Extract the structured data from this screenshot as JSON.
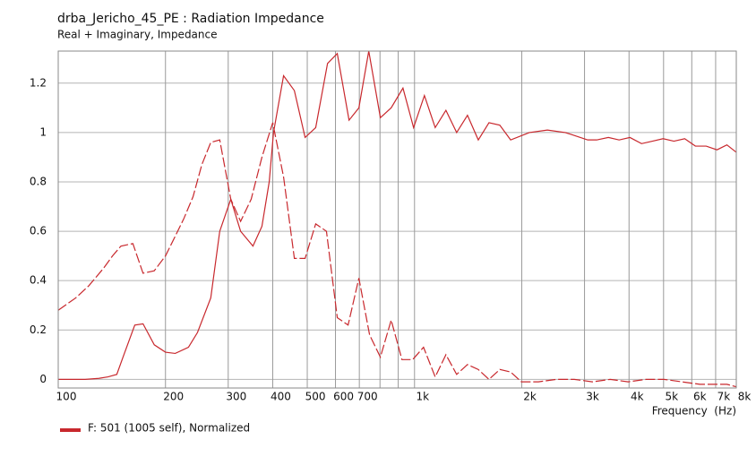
{
  "chart_data": {
    "type": "line",
    "title": "drba_Jericho_45_PE : Radiation Impedance",
    "subtitle": "Real + Imaginary, Impedance",
    "x_label": "Frequency  (Hz)",
    "xscale": "log",
    "grid": true,
    "legend": "bottom-left",
    "xlim": [
      100,
      8000
    ],
    "ylim": [
      -0.035,
      1.33
    ],
    "yticks": [
      0,
      0.2,
      0.4,
      0.6,
      0.8,
      1,
      1.2
    ],
    "xticks": [
      100,
      200,
      300,
      400,
      500,
      600,
      700,
      {
        "value": 1000,
        "label": "1k"
      },
      {
        "value": 2000,
        "label": "2k"
      },
      {
        "value": 3000,
        "label": "3k"
      },
      {
        "value": 4000,
        "label": "4k"
      },
      {
        "value": 5000,
        "label": "5k"
      },
      {
        "value": 6000,
        "label": "6k"
      },
      {
        "value": 7000,
        "label": "7k"
      },
      {
        "value": 8000,
        "label": "8k"
      }
    ],
    "x_minor_ticks": [
      800,
      900
    ],
    "series": [
      {
        "name": "F: 501 (1005 self), Normalized",
        "color": "#c8282d",
        "style": "solid",
        "x": [
          100,
          119,
          130,
          138,
          146,
          152,
          164,
          173,
          186,
          200,
          213,
          232,
          246,
          268,
          284,
          305,
          325,
          352,
          373,
          391,
          402,
          429,
          460,
          493,
          528,
          570,
          607,
          655,
          698,
          744,
          802,
          860,
          928,
          994,
          1066,
          1143,
          1225,
          1313,
          1408,
          1510,
          1618,
          1735,
          1861,
          2100,
          2360,
          2650,
          3063,
          3245,
          3500,
          3752,
          4023,
          4337,
          4651,
          4985,
          5346,
          5731,
          6141,
          6586,
          7062,
          7528,
          8000
        ],
        "values": [
          0,
          0,
          0.004,
          0.01,
          0.02,
          0.09,
          0.22,
          0.225,
          0.14,
          0.11,
          0.105,
          0.13,
          0.19,
          0.33,
          0.6,
          0.73,
          0.6,
          0.54,
          0.62,
          0.8,
          1.0,
          1.23,
          1.17,
          0.98,
          1.02,
          1.28,
          1.32,
          1.05,
          1.1,
          1.33,
          1.06,
          1.1,
          1.18,
          1.02,
          1.15,
          1.02,
          1.09,
          1.0,
          1.07,
          0.97,
          1.04,
          1.03,
          0.97,
          1.0,
          1.01,
          1.0,
          0.97,
          0.97,
          0.98,
          0.97,
          0.98,
          0.955,
          0.965,
          0.975,
          0.965,
          0.975,
          0.945,
          0.945,
          0.93,
          0.95,
          0.92
        ]
      },
      {
        "color": "#c8282d",
        "style": "dashed",
        "x": [
          100,
          112,
          122,
          134,
          142,
          150,
          162,
          173,
          186,
          200,
          213,
          225,
          239,
          253,
          268,
          284,
          305,
          325,
          348,
          373,
          400,
          429,
          460,
          493,
          528,
          566,
          607,
          651,
          698,
          748,
          802,
          860,
          922,
          988,
          1060,
          1143,
          1225,
          1313,
          1408,
          1510,
          1618,
          1735,
          1861,
          1995,
          2227,
          2500,
          2808,
          3155,
          3541,
          3977,
          4467,
          5012,
          5631,
          6324,
          6702,
          7528,
          8000
        ],
        "values": [
          0.28,
          0.33,
          0.38,
          0.45,
          0.5,
          0.54,
          0.55,
          0.43,
          0.44,
          0.5,
          0.58,
          0.65,
          0.74,
          0.87,
          0.96,
          0.97,
          0.73,
          0.64,
          0.73,
          0.9,
          1.04,
          0.82,
          0.49,
          0.49,
          0.63,
          0.6,
          0.25,
          0.22,
          0.41,
          0.18,
          0.09,
          0.24,
          0.08,
          0.08,
          0.13,
          0.01,
          0.1,
          0.02,
          0.06,
          0.04,
          0,
          0.04,
          0.03,
          -0.01,
          -0.01,
          0,
          0,
          -0.01,
          0,
          -0.01,
          0,
          0,
          -0.01,
          -0.02,
          -0.02,
          -0.02,
          -0.03
        ]
      }
    ]
  }
}
